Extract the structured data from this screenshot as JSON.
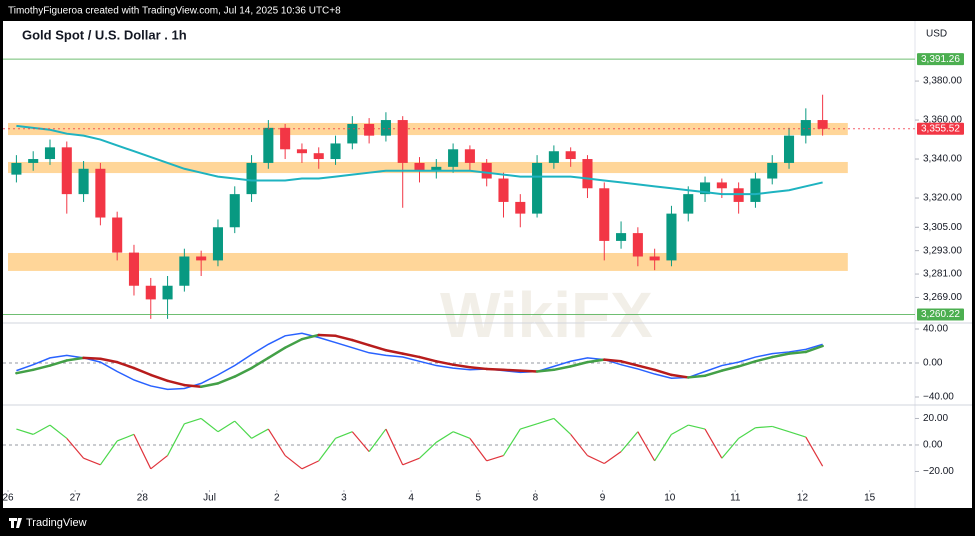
{
  "header": {
    "credit": "TimothyFigueroa created with TradingView.com, Jul 14, 2025 10:36 UTC+8"
  },
  "footer": {
    "brand": "TradingView"
  },
  "watermark": "WikiFX",
  "chart_data": [
    {
      "type": "candlestick",
      "title": "Gold Spot / U.S. Dollar . 1h",
      "currency": "USD",
      "up_color": "#089981",
      "down_color": "#f23645",
      "open": [
        3332,
        3338,
        3340,
        3346,
        3322,
        3335,
        3310,
        3292,
        3275,
        3268,
        3275,
        3290,
        3288,
        3305,
        3322,
        3338,
        3356,
        3345,
        3343,
        3340,
        3348,
        3358,
        3352,
        3360,
        3338,
        3334,
        3336,
        3345,
        3338,
        3330,
        3318,
        3312,
        3338,
        3344,
        3340,
        3325,
        3298,
        3302,
        3290,
        3288,
        3312,
        3322,
        3328,
        3325,
        3318,
        3330,
        3338,
        3352,
        3360
      ],
      "high": [
        3342,
        3344,
        3350,
        3349,
        3339,
        3338,
        3313,
        3296,
        3279,
        3280,
        3294,
        3293,
        3309,
        3326,
        3342,
        3360,
        3358,
        3348,
        3346,
        3352,
        3362,
        3361,
        3364,
        3362,
        3341,
        3340,
        3348,
        3347,
        3340,
        3333,
        3322,
        3342,
        3347,
        3346,
        3342,
        3328,
        3308,
        3305,
        3294,
        3316,
        3326,
        3331,
        3330,
        3328,
        3333,
        3342,
        3356,
        3366,
        3373
      ],
      "low": [
        3328,
        3334,
        3337,
        3312,
        3318,
        3306,
        3288,
        3270,
        3258,
        3258,
        3272,
        3280,
        3285,
        3302,
        3318,
        3335,
        3340,
        3338,
        3335,
        3337,
        3345,
        3348,
        3349,
        3315,
        3328,
        3330,
        3333,
        3334,
        3326,
        3310,
        3305,
        3310,
        3335,
        3336,
        3320,
        3288,
        3294,
        3285,
        3283,
        3285,
        3308,
        3318,
        3320,
        3312,
        3315,
        3327,
        3335,
        3348,
        3352
      ],
      "close": [
        3338,
        3340,
        3346,
        3322,
        3335,
        3310,
        3292,
        3275,
        3268,
        3275,
        3290,
        3288,
        3305,
        3322,
        3338,
        3356,
        3345,
        3343,
        3340,
        3348,
        3358,
        3352,
        3360,
        3338,
        3334,
        3336,
        3345,
        3338,
        3330,
        3318,
        3312,
        3338,
        3344,
        3340,
        3325,
        3298,
        3302,
        3290,
        3288,
        3312,
        3322,
        3328,
        3325,
        3318,
        3330,
        3338,
        3352,
        3360,
        3355.52
      ],
      "ma": {
        "color": "#1eb3c0",
        "values": [
          3357,
          3356,
          3355,
          3353,
          3352,
          3350,
          3347,
          3344,
          3341,
          3338,
          3335,
          3333,
          3331,
          3330,
          3329,
          3329,
          3329,
          3330,
          3330,
          3331,
          3332,
          3333,
          3334,
          3334,
          3334,
          3334,
          3334,
          3334,
          3333,
          3332,
          3331,
          3331,
          3331,
          3331,
          3330,
          3329,
          3328,
          3327,
          3326,
          3325,
          3324,
          3323,
          3322,
          3322,
          3322,
          3323,
          3324,
          3326,
          3328
        ]
      },
      "zones": [
        {
          "from": 3352.3,
          "to": 3358.5,
          "color": "#ffcc80"
        },
        {
          "from": 3332.8,
          "to": 3338.5,
          "color": "#ffcc80"
        },
        {
          "from": 3282.6,
          "to": 3291.8,
          "color": "#ffcc80"
        }
      ],
      "levels": [
        {
          "value": 3391.26,
          "label": "3,391.26",
          "color": "#4caf50",
          "style": "solid"
        },
        {
          "value": 3355.52,
          "label": "3,355.52",
          "color": "#f23645",
          "style": "dashed"
        },
        {
          "value": 3260.22,
          "label": "3,260.22",
          "color": "#4caf50",
          "style": "solid"
        }
      ],
      "ylim": [
        3256.4,
        3410.3
      ],
      "yticks": [
        {
          "value": 3380,
          "label": "3,380.00"
        },
        {
          "value": 3360,
          "label": "3,360.00"
        },
        {
          "value": 3340,
          "label": "3,340.00"
        },
        {
          "value": 3320,
          "label": "3,320.00"
        },
        {
          "value": 3305,
          "label": "3,305.00"
        },
        {
          "value": 3293,
          "label": "3,293.00"
        },
        {
          "value": 3281,
          "label": "3,281.00"
        },
        {
          "value": 3269,
          "label": "3,269.00"
        }
      ],
      "xlim": [
        0,
        54
      ],
      "xticks": [
        {
          "value": 0,
          "label": "26"
        },
        {
          "value": 4,
          "label": "27"
        },
        {
          "value": 8,
          "label": "28"
        },
        {
          "value": 12,
          "label": "Jul"
        },
        {
          "value": 16,
          "label": "2"
        },
        {
          "value": 20,
          "label": "3"
        },
        {
          "value": 24,
          "label": "4"
        },
        {
          "value": 28,
          "label": "5"
        },
        {
          "value": 31.4,
          "label": "8"
        },
        {
          "value": 35.4,
          "label": "9"
        },
        {
          "value": 39.4,
          "label": "10"
        },
        {
          "value": 43.3,
          "label": "11"
        },
        {
          "value": 47.3,
          "label": "12"
        },
        {
          "value": 51.3,
          "label": "15"
        }
      ]
    },
    {
      "type": "macd",
      "series": [
        {
          "color": "#2962ff",
          "values": [
            -9,
            -2,
            6,
            9,
            6,
            1,
            -10,
            -20,
            -27,
            -31,
            -30,
            -24,
            -14,
            -3,
            10,
            22,
            32,
            35,
            30,
            24,
            18,
            12,
            9,
            7,
            2,
            -3,
            -6,
            -8,
            -7,
            -9,
            -11,
            -10,
            -4,
            2,
            6,
            4,
            -2,
            -7,
            -13,
            -18,
            -17,
            -10,
            -3,
            1,
            7,
            11,
            13,
            16,
            22
          ]
        },
        {
          "color": "#43a047",
          "down_color": "#b71c1c",
          "values": [
            -12,
            -8,
            -3,
            3,
            6,
            5,
            1,
            -6,
            -14,
            -21,
            -26,
            -28,
            -24,
            -16,
            -6,
            6,
            18,
            28,
            33,
            32,
            27,
            21,
            15,
            11,
            7,
            2,
            -2,
            -5,
            -7,
            -8,
            -9,
            -10,
            -8,
            -4,
            1,
            4,
            2,
            -3,
            -8,
            -14,
            -17,
            -15,
            -9,
            -4,
            2,
            7,
            11,
            13,
            20
          ]
        }
      ],
      "ylim": [
        -45.9,
        44.7
      ],
      "yticks": [
        {
          "value": 40,
          "label": "40.00"
        },
        {
          "value": 0,
          "label": "0.00"
        },
        {
          "value": -40,
          "label": "−40.00"
        }
      ]
    },
    {
      "type": "oscillator",
      "up_color": "#4cd84c",
      "down_color": "#e0343c",
      "values": [
        12,
        8,
        15,
        5,
        -10,
        -15,
        3,
        8,
        -18,
        -8,
        16,
        20,
        10,
        18,
        5,
        12,
        -8,
        -18,
        -12,
        5,
        10,
        -5,
        12,
        -15,
        -10,
        2,
        10,
        5,
        -12,
        -8,
        12,
        16,
        20,
        8,
        -8,
        -14,
        -5,
        10,
        -12,
        8,
        15,
        12,
        -10,
        5,
        13,
        14,
        10,
        6,
        -16
      ],
      "ylim": [
        -35.5,
        27.9
      ],
      "yticks": [
        {
          "value": 20,
          "label": "20.00"
        },
        {
          "value": 0,
          "label": "0.00"
        },
        {
          "value": -20,
          "label": "−20.00"
        }
      ]
    }
  ]
}
